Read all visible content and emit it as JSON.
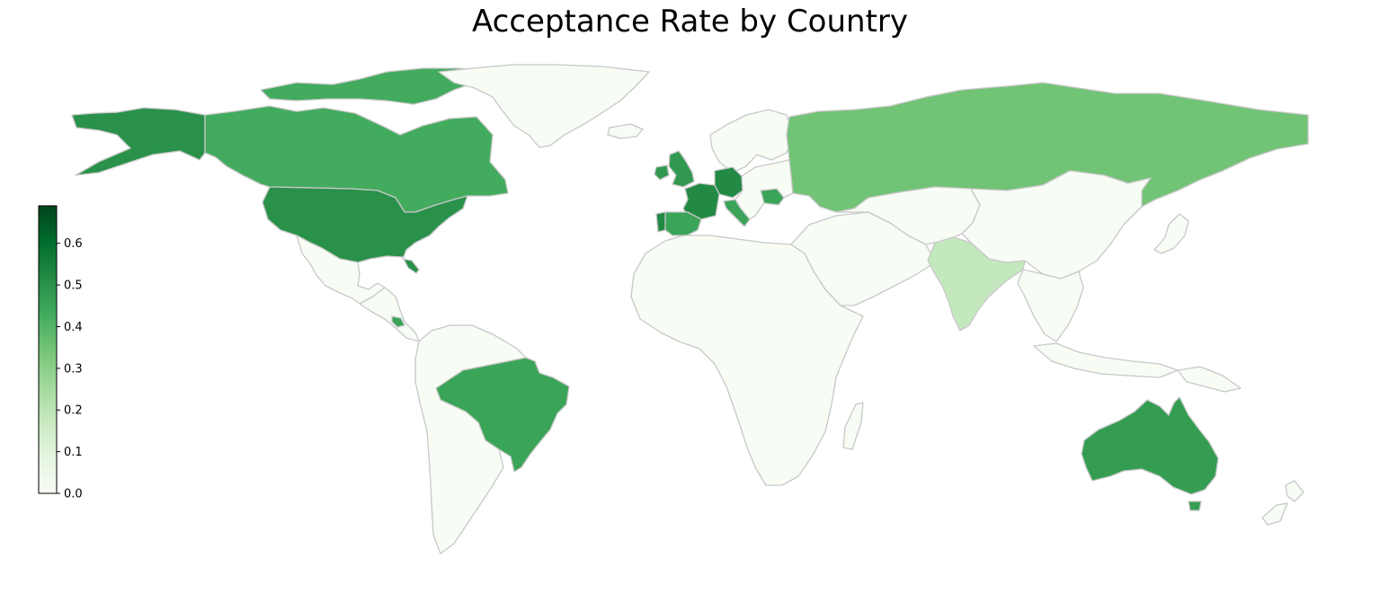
{
  "title": "Acceptance Rate by Country",
  "colorbar": {
    "min": 0.0,
    "max": 0.69,
    "ticks": [
      "0.0",
      "0.1",
      "0.2",
      "0.3",
      "0.4",
      "0.5",
      "0.6"
    ],
    "colormap": "Greens",
    "orientation": "vertical",
    "placement": "left"
  },
  "colors": {
    "border": "#c8c8c8",
    "no_data_fill": "#f7fcf5",
    "ramp": [
      "#f7fcf5",
      "#e5f5e0",
      "#c7e9c0",
      "#a1d99b",
      "#74c476",
      "#41ab5d",
      "#238b45",
      "#006d2c",
      "#00441b"
    ]
  },
  "chart_data": {
    "type": "choropleth",
    "title": "Acceptance Rate by Country",
    "metric": "acceptance rate",
    "value_range": [
      0.0,
      0.69
    ],
    "regions": [
      {
        "id": "alaska",
        "value": 0.5
      },
      {
        "id": "usa",
        "value": 0.5
      },
      {
        "id": "canada",
        "value": 0.43
      },
      {
        "id": "canada_islands",
        "value": 0.43
      },
      {
        "id": "greenland",
        "value": 0.0
      },
      {
        "id": "mexico",
        "value": 0.0
      },
      {
        "id": "central_america",
        "value": 0.0
      },
      {
        "id": "costa_rica",
        "value": 0.45
      },
      {
        "id": "brazil",
        "value": 0.45
      },
      {
        "id": "south_america_rest",
        "value": 0.0
      },
      {
        "id": "uk",
        "value": 0.48
      },
      {
        "id": "ireland",
        "value": 0.48
      },
      {
        "id": "iceland",
        "value": 0.0
      },
      {
        "id": "scandinavia",
        "value": 0.0
      },
      {
        "id": "france",
        "value": 0.52
      },
      {
        "id": "germany",
        "value": 0.52
      },
      {
        "id": "spain",
        "value": 0.45
      },
      {
        "id": "portugal",
        "value": 0.52
      },
      {
        "id": "italy",
        "value": 0.45
      },
      {
        "id": "romania",
        "value": 0.45
      },
      {
        "id": "eastern_europe",
        "value": 0.0
      },
      {
        "id": "russia",
        "value": 0.35
      },
      {
        "id": "africa",
        "value": 0.0
      },
      {
        "id": "madagascar",
        "value": 0.0
      },
      {
        "id": "middle_east",
        "value": 0.0
      },
      {
        "id": "central_asia",
        "value": 0.0
      },
      {
        "id": "india",
        "value": 0.18
      },
      {
        "id": "china",
        "value": 0.0
      },
      {
        "id": "southeast_asia",
        "value": 0.0
      },
      {
        "id": "japan",
        "value": 0.0
      },
      {
        "id": "indonesia",
        "value": 0.0
      },
      {
        "id": "papua_new_guinea",
        "value": 0.0
      },
      {
        "id": "australia",
        "value": 0.47
      },
      {
        "id": "tasmania",
        "value": 0.47
      },
      {
        "id": "new_zealand",
        "value": 0.0
      }
    ]
  }
}
